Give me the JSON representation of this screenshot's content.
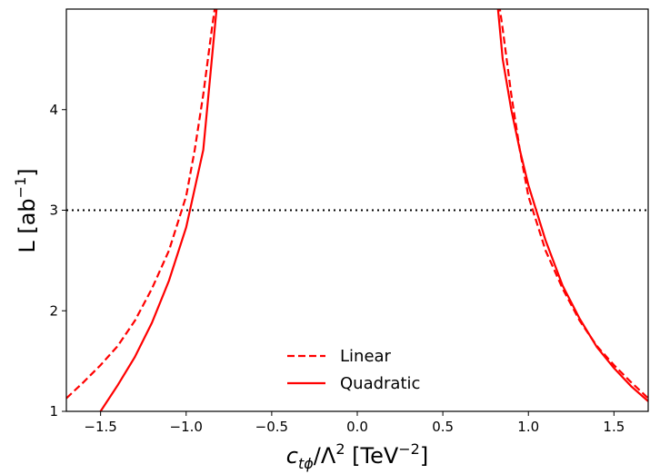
{
  "chart_data": {
    "type": "line",
    "xlabel": {
      "base": "c",
      "sub": "tϕ",
      "mid": "/Λ",
      "sup": "2",
      "unit_open": " [TeV",
      "unit_sup": "−2",
      "unit_close": "]"
    },
    "ylabel": {
      "base": "L [ab",
      "sup": "−1",
      "close": "]"
    },
    "xlim": [
      -1.7,
      1.7
    ],
    "ylim": [
      1,
      5
    ],
    "xticks": [
      -1.5,
      -1.0,
      -0.5,
      0.0,
      0.5,
      1.0,
      1.5
    ],
    "xtick_labels": [
      "−1.5",
      "−1.0",
      "−0.5",
      "0.0",
      "0.5",
      "1.0",
      "1.5"
    ],
    "yticks": [
      1,
      2,
      3,
      4
    ],
    "ytick_labels": [
      "1",
      "2",
      "3",
      "4"
    ],
    "grid": false,
    "legend_position": "bottom-center",
    "reference_line": {
      "y": 3,
      "style": "dotted",
      "color": "#000000"
    },
    "series": [
      {
        "name": "Linear",
        "color": "#ff0000",
        "style": "dashed",
        "segments": [
          {
            "x": [
              -1.7,
              -1.6,
              -1.5,
              -1.4,
              -1.3,
              -1.2,
              -1.1,
              -1.0,
              -0.95,
              -0.9,
              -0.85,
              -0.8,
              -0.77
            ],
            "y": [
              1.13,
              1.29,
              1.46,
              1.65,
              1.9,
              2.22,
              2.6,
              3.14,
              3.6,
              4.15,
              4.8,
              5.4,
              5.8
            ]
          },
          {
            "x": [
              0.77,
              0.8,
              0.85,
              0.9,
              0.95,
              1.0,
              1.1,
              1.2,
              1.3,
              1.4,
              1.5,
              1.6,
              1.7
            ],
            "y": [
              5.8,
              5.4,
              4.8,
              4.15,
              3.6,
              3.14,
              2.6,
              2.22,
              1.9,
              1.65,
              1.46,
              1.29,
              1.13
            ]
          }
        ]
      },
      {
        "name": "Quadratic",
        "color": "#ff0000",
        "style": "solid",
        "segments": [
          {
            "x": [
              -1.5,
              -1.4,
              -1.3,
              -1.2,
              -1.1,
              -1.0,
              -0.9,
              -0.85,
              -0.8,
              -0.77
            ],
            "y": [
              1.0,
              1.26,
              1.54,
              1.88,
              2.3,
              2.83,
              3.6,
              4.5,
              5.4,
              5.9
            ]
          },
          {
            "x": [
              0.77,
              0.8,
              0.85,
              0.9,
              0.95,
              1.0,
              1.1,
              1.2,
              1.3,
              1.4,
              1.5,
              1.6,
              1.7
            ],
            "y": [
              5.9,
              5.4,
              4.5,
              4.0,
              3.6,
              3.25,
              2.7,
              2.25,
              1.92,
              1.64,
              1.43,
              1.25,
              1.1
            ]
          }
        ]
      }
    ]
  }
}
